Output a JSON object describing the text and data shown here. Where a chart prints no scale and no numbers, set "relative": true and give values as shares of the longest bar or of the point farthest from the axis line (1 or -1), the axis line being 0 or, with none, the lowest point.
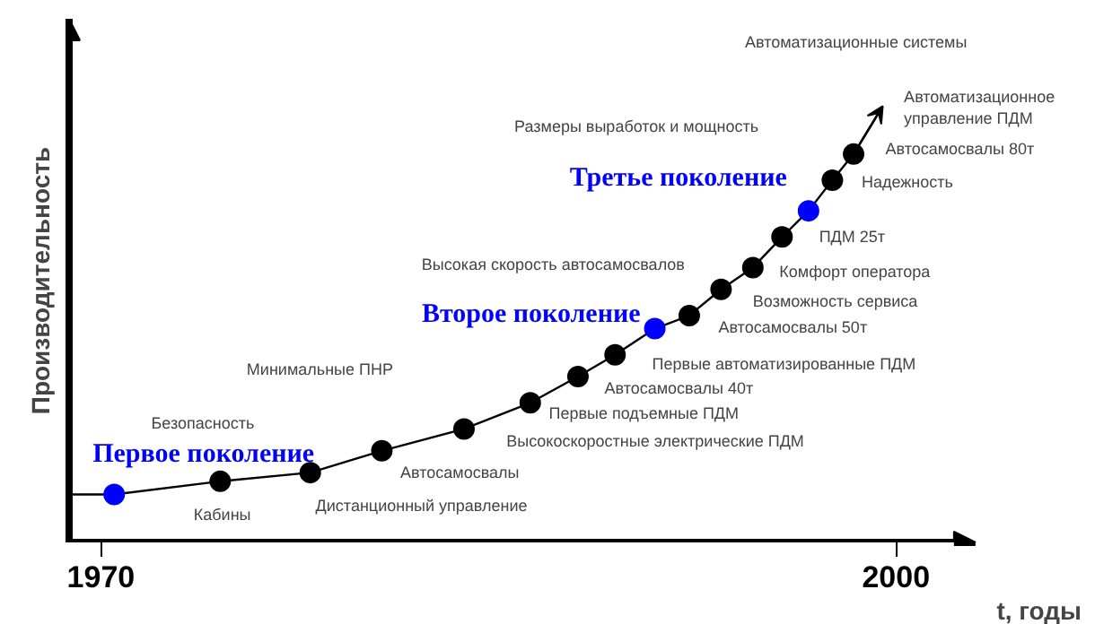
{
  "chart_data": {
    "type": "line",
    "relative": true,
    "xlabel": "t, годы",
    "ylabel": "Производительность",
    "xlim": [
      1968.8,
      2003.0
    ],
    "xticks": [
      1970,
      2000
    ],
    "series": [
      {
        "color": "#000000",
        "x": [
          1968.8,
          1970.5,
          1974.5,
          1977.9,
          1980.6,
          1983.7,
          1986.2,
          1988.0,
          1989.4,
          1990.9,
          1992.2,
          1993.4,
          1994.6,
          1995.7,
          1996.7,
          1997.6,
          1998.4,
          1999.5
        ],
        "values": [
          0.11,
          0.11,
          0.14,
          0.16,
          0.21,
          0.26,
          0.32,
          0.38,
          0.43,
          0.49,
          0.52,
          0.58,
          0.63,
          0.7,
          0.76,
          0.83,
          0.89,
          1
        ]
      },
      {
        "type": "scatter",
        "marker": "circle",
        "color": "#000000",
        "x": [
          1974.5,
          1977.9,
          1980.6,
          1983.7,
          1986.2,
          1988.0,
          1989.4,
          1992.2,
          1993.4,
          1994.6,
          1995.7,
          1997.6,
          1998.4
        ],
        "values": [
          0.14,
          0.16,
          0.21,
          0.26,
          0.32,
          0.38,
          0.43,
          0.52,
          0.58,
          0.63,
          0.7,
          0.83,
          0.89
        ]
      },
      {
        "type": "scatter",
        "marker": "circle",
        "name": "Первое поколение",
        "color": "#0000ff",
        "x": [
          1970.5
        ],
        "values": [
          0.11
        ]
      },
      {
        "type": "scatter",
        "marker": "circle",
        "name": "Второе поколение",
        "color": "#0000ff",
        "x": [
          1990.9
        ],
        "values": [
          0.49
        ]
      },
      {
        "type": "scatter",
        "marker": "circle",
        "name": "Третье поколение",
        "color": "#0000ff",
        "x": [
          1996.7
        ],
        "values": [
          0.76
        ]
      }
    ],
    "annotations": [
      "Автоматизационные системы",
      "Автоматизационное\nуправление ПДМ",
      "Размеры выработок и мощность",
      "Автосамосвалы 80т",
      "Надежность",
      "ПДМ 25т",
      "Высокая скорость автосамосвалов",
      "Комфорт оператора",
      "Возможность сервиса",
      "Автосамосвалы 50т",
      "Минимальные ПНР",
      "Первые автоматизированные ПДМ",
      "Автосамосвалы 40т",
      "Первые подъемные ПДМ",
      "Безопасность",
      "Высокоскоростные электрические ПДМ",
      "Автосамосвалы",
      "Дистанционный управление",
      "Кабины"
    ]
  }
}
